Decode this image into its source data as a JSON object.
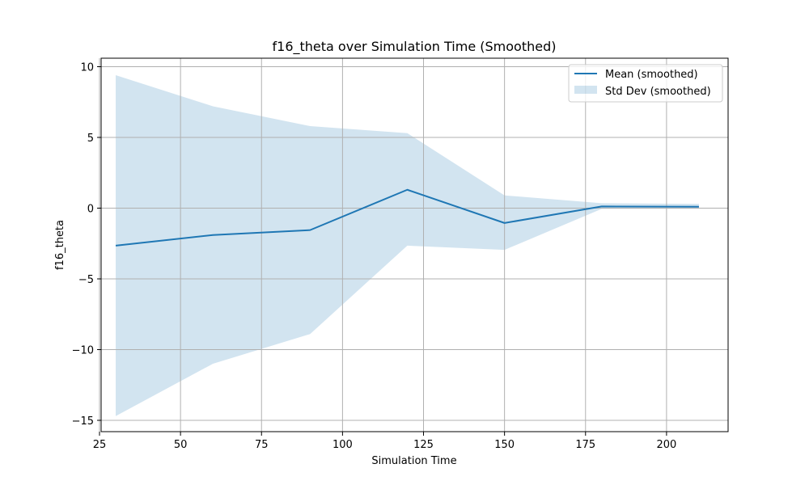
{
  "chart_data": {
    "type": "line",
    "title": "f16_theta over Simulation Time (Smoothed)",
    "xlabel": "Simulation Time",
    "ylabel": "f16_theta",
    "xlim": [
      25.5,
      219
    ],
    "ylim": [
      -15.8,
      10.6
    ],
    "x_ticks": [
      25,
      50,
      75,
      100,
      125,
      150,
      175,
      200
    ],
    "y_ticks": [
      -15,
      -10,
      -5,
      0,
      5,
      10
    ],
    "x_tick_labels": [
      "25",
      "50",
      "75",
      "100",
      "125",
      "150",
      "175",
      "200"
    ],
    "y_tick_labels": [
      "−15",
      "−10",
      "−5",
      "0",
      "5",
      "10"
    ],
    "grid": true,
    "legend_position": "top-right",
    "x": [
      30,
      60,
      90,
      120,
      150,
      180,
      210
    ],
    "series": [
      {
        "name": "Mean (smoothed)",
        "kind": "line",
        "color": "#1f77b4",
        "values": [
          -2.65,
          -1.9,
          -1.55,
          1.3,
          -1.05,
          0.12,
          0.1
        ]
      },
      {
        "name": "Std Dev (smoothed)",
        "kind": "band",
        "color": "#1f77b4",
        "opacity": 0.2,
        "upper": [
          9.4,
          7.2,
          5.8,
          5.3,
          0.9,
          0.35,
          0.3
        ],
        "lower": [
          -14.7,
          -11.0,
          -8.9,
          -2.65,
          -2.95,
          -0.05,
          -0.05
        ]
      }
    ]
  }
}
